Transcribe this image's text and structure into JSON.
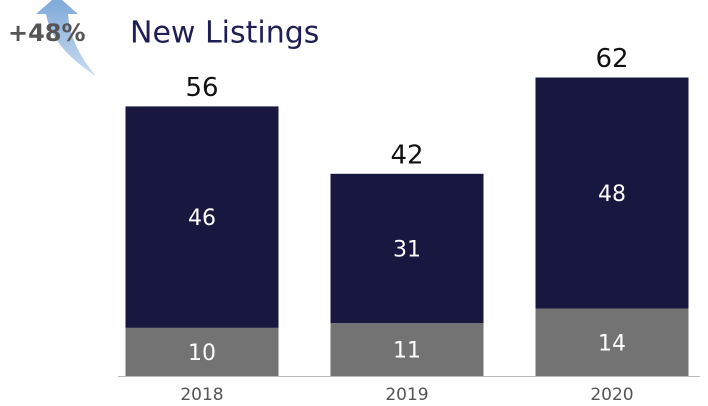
{
  "chart_data": {
    "type": "stacked_bar",
    "title": "New Listings",
    "annotation": "+48%",
    "categories": [
      "2018",
      "2019",
      "2020"
    ],
    "series": [
      {
        "color": "#737373",
        "values": [
          10,
          11,
          14
        ]
      },
      {
        "color": "#17173f",
        "values": [
          46,
          31,
          48
        ]
      }
    ],
    "totals": [
      56,
      42,
      62
    ],
    "ylim": [
      0,
      70
    ]
  }
}
